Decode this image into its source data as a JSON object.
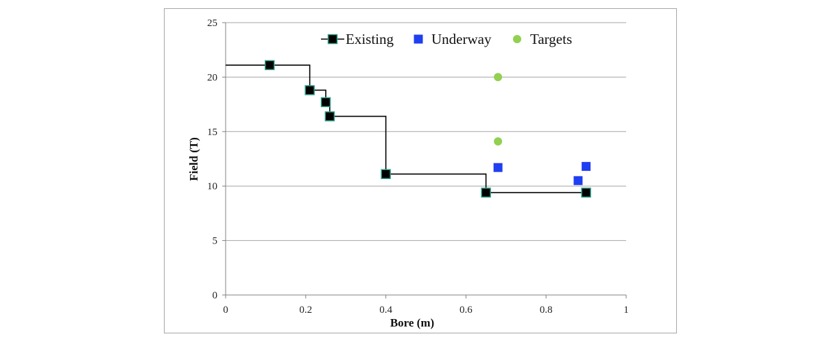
{
  "chart_data": {
    "type": "scatter",
    "xlabel": "Bore (m)",
    "ylabel": "Field (T)",
    "xlim": [
      0,
      1
    ],
    "ylim": [
      0,
      25
    ],
    "x_ticks": [
      "0",
      "0.2",
      "0.4",
      "0.6",
      "0.8",
      "1"
    ],
    "y_ticks": [
      "0",
      "5",
      "10",
      "15",
      "20",
      "25"
    ],
    "grid": "horizontal",
    "legend_position": "top-right",
    "series": [
      {
        "name": "Existing",
        "marker": "square",
        "line": "step",
        "color": "#000000",
        "marker_edge": "#2e9e87",
        "step_start": [
          0,
          21.1
        ],
        "points": [
          [
            0.11,
            21.1
          ],
          [
            0.21,
            18.8
          ],
          [
            0.25,
            17.7
          ],
          [
            0.26,
            16.4
          ],
          [
            0.4,
            11.1
          ],
          [
            0.65,
            9.4
          ],
          [
            0.9,
            9.4
          ]
        ]
      },
      {
        "name": "Underway",
        "marker": "square",
        "color": "#1f3ff0",
        "points": [
          [
            0.68,
            11.7
          ],
          [
            0.88,
            10.5
          ],
          [
            0.9,
            11.8
          ]
        ]
      },
      {
        "name": "Targets",
        "marker": "circle",
        "color": "#92d050",
        "points": [
          [
            0.68,
            20.0
          ],
          [
            0.68,
            14.1
          ]
        ]
      }
    ]
  }
}
